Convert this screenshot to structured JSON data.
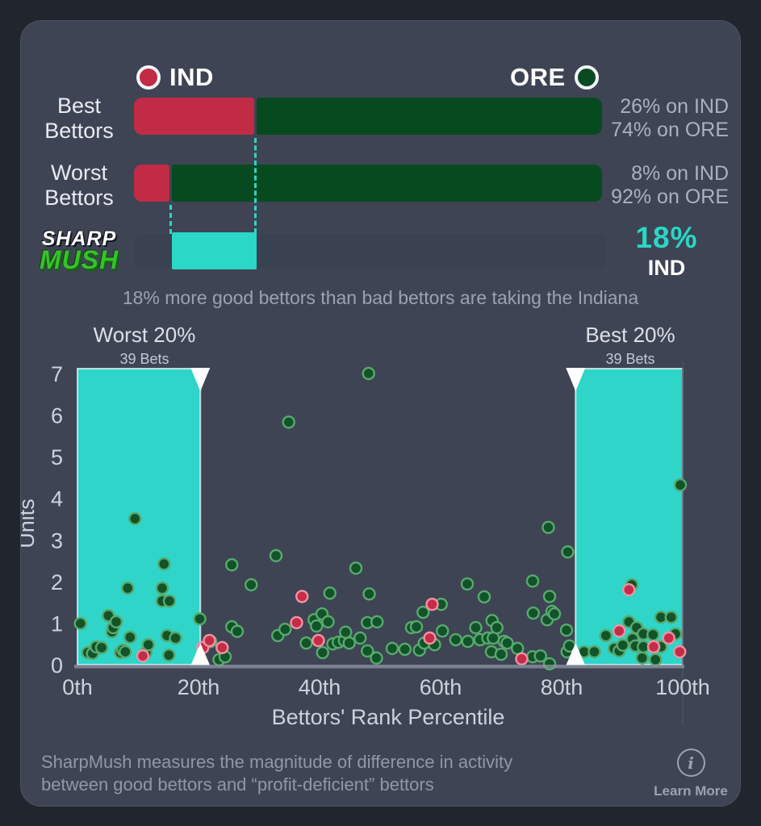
{
  "colors": {
    "background": "#21252e",
    "card": "#3e4454",
    "ind_red": "#c22b45",
    "ore_green": "#084a20",
    "accent_cyan": "#2bd7c6",
    "stat_text": "#a8b2c1",
    "axis_text": "#ccd3dd"
  },
  "legend": {
    "ind": "IND",
    "ore": "ORE"
  },
  "bars": {
    "rows": [
      {
        "label": "Best Bettors",
        "ind_pct": 26,
        "ore_pct": 74,
        "stat_line1": "26% on IND",
        "stat_line2": "74% on ORE"
      },
      {
        "label": "Worst Bettors",
        "ind_pct": 8,
        "ore_pct": 92,
        "stat_line1": "8% on IND",
        "stat_line2": "92% on ORE"
      }
    ],
    "sharpmush": {
      "logo_line1": "SHARP",
      "logo_line2": "MUSH",
      "range_start_pct": 8,
      "range_end_pct": 26,
      "value_label": "18%",
      "team_label": "IND"
    }
  },
  "caption": "18% more good bettors than bad bettors are taking the Indiana",
  "chart_data": {
    "type": "scatter",
    "xlabel": "Bettors' Rank Percentile",
    "ylabel": "Units",
    "xlim": [
      0,
      100
    ],
    "ylim": [
      0,
      7
    ],
    "y_ticks": [
      0,
      1,
      2,
      3,
      4,
      5,
      6,
      7
    ],
    "x_ticks": [
      {
        "label": "0th",
        "value": 0
      },
      {
        "label": "20th",
        "value": 20
      },
      {
        "label": "40th",
        "value": 40
      },
      {
        "label": "60th",
        "value": 60
      },
      {
        "label": "80th",
        "value": 80
      },
      {
        "label": "100th",
        "value": 100
      }
    ],
    "band_color": "#2ed5c8",
    "bands": [
      {
        "label": "Worst 20%",
        "sub": "39 Bets",
        "from": 0,
        "to": 20.3
      },
      {
        "label": "Best 20%",
        "sub": "39 Bets",
        "from": 82.3,
        "to": 100
      }
    ],
    "point_styles": {
      "green": {
        "fill": "#12532a",
        "stroke": "#58a96d"
      },
      "red": {
        "fill": "#c52c48",
        "stroke": "#ef93a4"
      }
    },
    "series": [
      {
        "name": "ORE bettors",
        "color": "green",
        "points": [
          [
            0.5,
            0.99
          ],
          [
            1.7,
            0.29
          ],
          [
            2.5,
            0.27
          ],
          [
            3.1,
            0.43
          ],
          [
            4.0,
            0.41
          ],
          [
            5.1,
            1.18
          ],
          [
            5.7,
            0.79
          ],
          [
            5.9,
            0.89
          ],
          [
            6.4,
            1.03
          ],
          [
            7.1,
            0.29
          ],
          [
            7.5,
            0.35
          ],
          [
            7.9,
            0.31
          ],
          [
            8.3,
            1.84
          ],
          [
            8.7,
            0.66
          ],
          [
            9.5,
            3.51
          ],
          [
            11.3,
            0.29
          ],
          [
            11.7,
            0.48
          ],
          [
            14.0,
            1.84
          ],
          [
            14.0,
            1.53
          ],
          [
            14.3,
            2.42
          ],
          [
            14.8,
            0.7
          ],
          [
            15.1,
            0.23
          ],
          [
            15.2,
            1.53
          ],
          [
            16.2,
            0.64
          ],
          [
            20.2,
            1.1
          ],
          [
            22.0,
            0.56
          ],
          [
            23.4,
            0.12
          ],
          [
            24.4,
            0.19
          ],
          [
            25.5,
            2.4
          ],
          [
            25.5,
            0.91
          ],
          [
            26.4,
            0.8
          ],
          [
            28.7,
            1.92
          ],
          [
            32.8,
            2.62
          ],
          [
            33.1,
            0.7
          ],
          [
            34.3,
            0.85
          ],
          [
            34.9,
            5.83
          ],
          [
            37.8,
            0.52
          ],
          [
            39.1,
            1.08
          ],
          [
            39.5,
            0.93
          ],
          [
            40.4,
            1.22
          ],
          [
            40.5,
            0.29
          ],
          [
            41.4,
            1.03
          ],
          [
            41.7,
            1.72
          ],
          [
            42.2,
            0.5
          ],
          [
            43.1,
            0.54
          ],
          [
            44.1,
            0.58
          ],
          [
            44.3,
            0.78
          ],
          [
            44.9,
            0.52
          ],
          [
            46.0,
            2.32
          ],
          [
            46.7,
            0.64
          ],
          [
            47.9,
            1.01
          ],
          [
            48.1,
            7.0
          ],
          [
            48.2,
            1.7
          ],
          [
            47.9,
            0.33
          ],
          [
            49.4,
            0.16
          ],
          [
            49.5,
            1.03
          ],
          [
            52.0,
            0.39
          ],
          [
            54.1,
            0.37
          ],
          [
            55.2,
            0.89
          ],
          [
            56.0,
            0.91
          ],
          [
            56.5,
            0.35
          ],
          [
            57.1,
            1.26
          ],
          [
            57.3,
            0.52
          ],
          [
            59.0,
            0.48
          ],
          [
            60.1,
            1.45
          ],
          [
            60.3,
            0.81
          ],
          [
            62.5,
            0.6
          ],
          [
            64.4,
            1.94
          ],
          [
            64.5,
            0.56
          ],
          [
            65.8,
            0.89
          ],
          [
            66.5,
            0.6
          ],
          [
            67.2,
            1.63
          ],
          [
            67.8,
            0.64
          ],
          [
            68.7,
            0.64
          ],
          [
            68.4,
            0.31
          ],
          [
            68.5,
            1.06
          ],
          [
            69.3,
            0.89
          ],
          [
            70.0,
            0.25
          ],
          [
            70.5,
            0.56
          ],
          [
            71.0,
            0.52
          ],
          [
            72.7,
            0.39
          ],
          [
            75.2,
            2.01
          ],
          [
            75.2,
            0.19
          ],
          [
            75.3,
            1.24
          ],
          [
            76.5,
            0.21
          ],
          [
            77.6,
            1.08
          ],
          [
            77.8,
            3.3
          ],
          [
            78.0,
            1.64
          ],
          [
            78.0,
            0.02
          ],
          [
            78.4,
            1.28
          ],
          [
            78.8,
            1.22
          ],
          [
            80.8,
            0.83
          ],
          [
            80.9,
            0.31
          ],
          [
            81.0,
            2.71
          ],
          [
            81.3,
            0.45
          ],
          [
            83.7,
            0.31
          ],
          [
            85.4,
            0.31
          ],
          [
            87.3,
            0.7
          ],
          [
            88.7,
            0.39
          ],
          [
            89.5,
            0.33
          ],
          [
            90.1,
            0.47
          ],
          [
            91.1,
            1.03
          ],
          [
            91.6,
            1.92
          ],
          [
            91.7,
            0.62
          ],
          [
            92.2,
            0.45
          ],
          [
            92.4,
            0.89
          ],
          [
            93.3,
            0.16
          ],
          [
            93.5,
            0.74
          ],
          [
            93.5,
            0.43
          ],
          [
            95.1,
            0.72
          ],
          [
            95.5,
            0.12
          ],
          [
            96.4,
            1.14
          ],
          [
            96.4,
            0.43
          ],
          [
            98.1,
            1.14
          ],
          [
            98.8,
            0.74
          ],
          [
            99.6,
            4.32
          ]
        ]
      },
      {
        "name": "IND bettors",
        "color": "red",
        "points": [
          [
            10.8,
            0.21
          ],
          [
            20.7,
            0.41
          ],
          [
            21.8,
            0.58
          ],
          [
            23.9,
            0.41
          ],
          [
            36.2,
            1.01
          ],
          [
            37.1,
            1.64
          ],
          [
            39.8,
            0.58
          ],
          [
            58.2,
            0.64
          ],
          [
            58.6,
            1.45
          ],
          [
            73.4,
            0.14
          ],
          [
            89.5,
            0.81
          ],
          [
            91.1,
            1.8
          ],
          [
            95.2,
            0.43
          ],
          [
            97.7,
            0.64
          ],
          [
            99.5,
            0.31
          ]
        ]
      }
    ]
  },
  "footer": {
    "line1": "SharpMush measures the magnitude of difference in activity",
    "line2": "between good bettors and “profit-deficient” bettors",
    "info_glyph": "i",
    "learn_more": "Learn More"
  }
}
